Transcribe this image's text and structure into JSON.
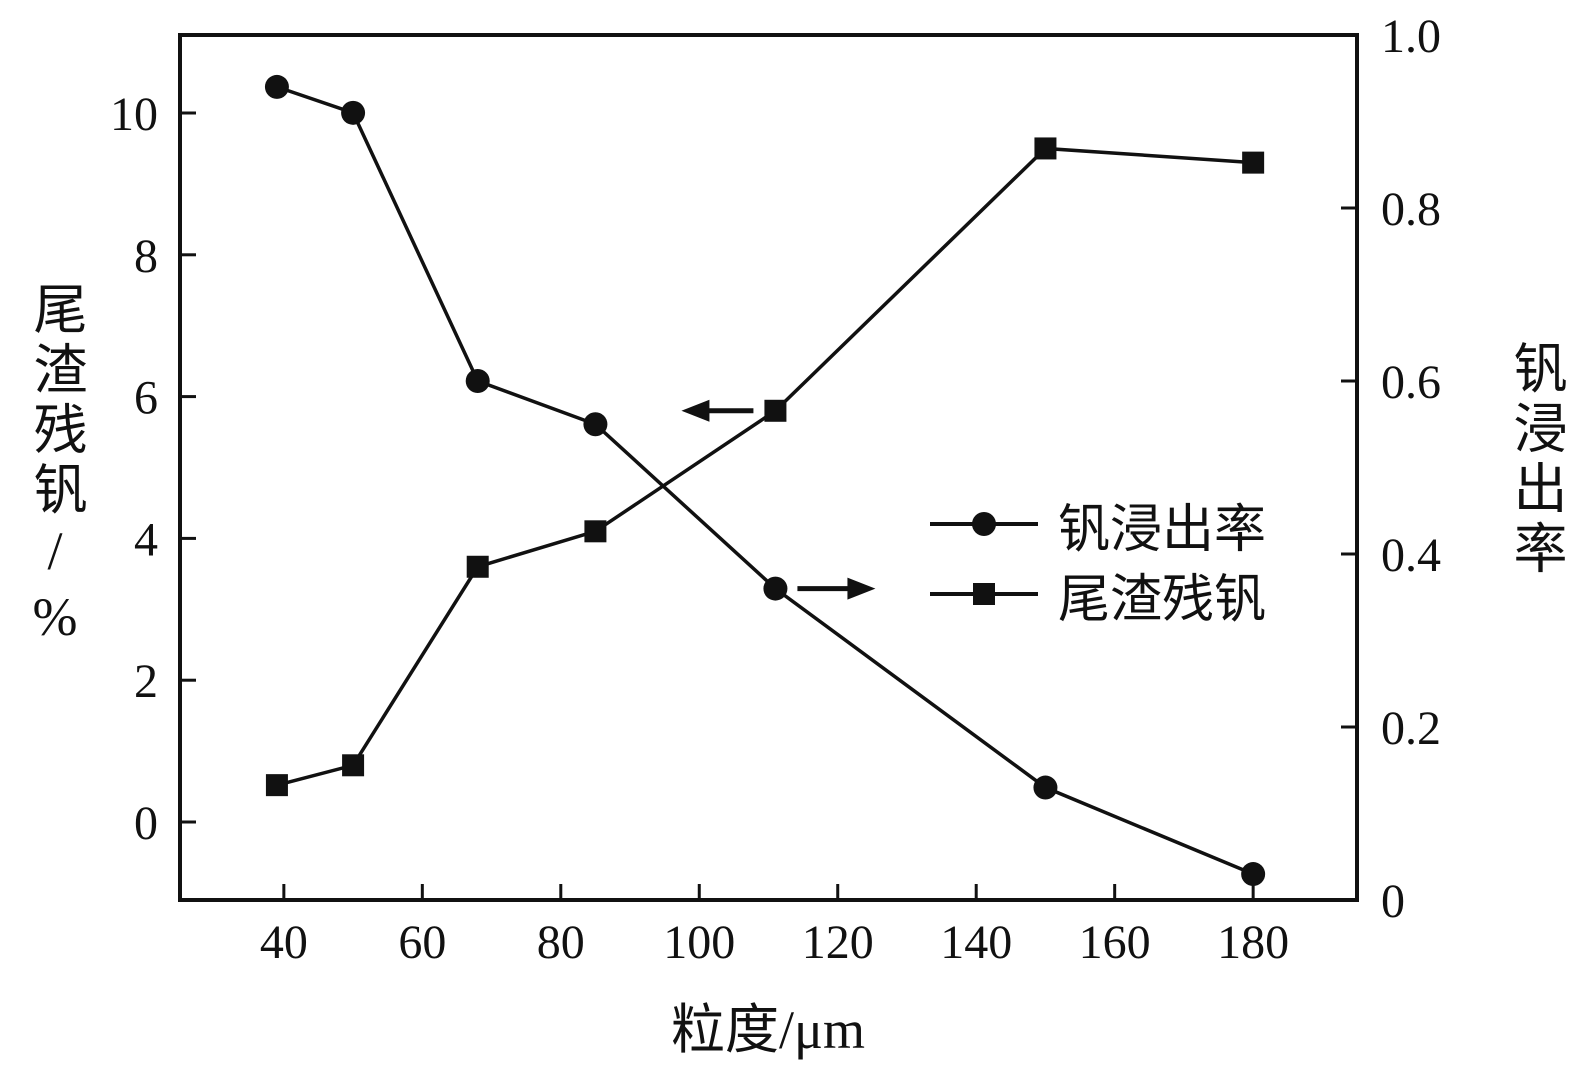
{
  "chart_data": {
    "type": "line",
    "title": "",
    "xlabel": "粒度/μm",
    "ylabel_left": "尾渣残钒/%",
    "ylabel_right": "钒浸出率",
    "x_ticks": [
      "40",
      "60",
      "80",
      "100",
      "120",
      "140",
      "160",
      "180"
    ],
    "x_range": [
      25,
      195
    ],
    "y_left_ticks": [
      "0",
      "2",
      "4",
      "6",
      "8",
      "10"
    ],
    "y_left_range": [
      -1.1,
      11.1
    ],
    "y_right_ticks": [
      "0",
      "0.2",
      "0.4",
      "0.6",
      "0.8",
      "1.0"
    ],
    "y_right_range": [
      0,
      1.0
    ],
    "grid": false,
    "x": [
      39,
      50,
      68,
      85,
      111,
      150,
      180
    ],
    "series": [
      {
        "name": "钒浸出率",
        "axis": "right",
        "marker": "circle",
        "values": [
          0.94,
          0.91,
          0.6,
          0.55,
          0.36,
          0.13,
          0.03
        ]
      },
      {
        "name": "尾渣残钒",
        "axis": "left",
        "marker": "square",
        "values": [
          0.52,
          0.8,
          3.6,
          4.1,
          5.8,
          9.5,
          9.3
        ]
      }
    ],
    "legend": {
      "position": "center-right",
      "entries": [
        "钒浸出率",
        "尾渣残钒"
      ]
    },
    "annotations": [
      {
        "type": "arrow",
        "dir": "left",
        "x": 111,
        "y": 5.8,
        "axis": "left",
        "offset": 22,
        "length": 72
      },
      {
        "type": "arrow",
        "dir": "right",
        "x": 111,
        "y": 0.36,
        "axis": "right",
        "offset": 22,
        "length": 78
      }
    ],
    "colors": {
      "line": "#111111",
      "background": "#ffffff"
    }
  }
}
